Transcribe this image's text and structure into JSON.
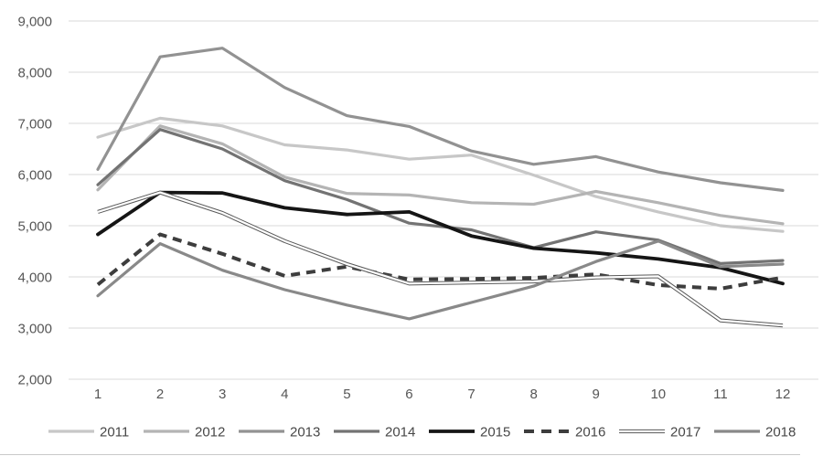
{
  "chart_data": {
    "type": "line",
    "title": "",
    "xlabel": "",
    "ylabel": "",
    "ylim": [
      2000,
      9000
    ],
    "ytick_step": 1000,
    "ytick_labels": [
      "2,000",
      "3,000",
      "4,000",
      "5,000",
      "6,000",
      "7,000",
      "8,000",
      "9,000"
    ],
    "xtick_labels": [
      "1",
      "2",
      "3",
      "4",
      "5",
      "6",
      "7",
      "8",
      "9",
      "10",
      "11",
      "12"
    ],
    "grid": "horizontal",
    "gridline_color": "#d9d9d9",
    "legend_position": "bottom",
    "series": [
      {
        "name": "2011",
        "color": "#c7c7c7",
        "style": "solid",
        "values": [
          6730,
          7100,
          6950,
          6580,
          6480,
          6300,
          6380,
          5990,
          5570,
          5270,
          5000,
          4890
        ]
      },
      {
        "name": "2012",
        "color": "#b4b4b4",
        "style": "solid",
        "values": [
          5700,
          6950,
          6600,
          5950,
          5630,
          5600,
          5450,
          5420,
          5670,
          5450,
          5200,
          5040
        ]
      },
      {
        "name": "2013",
        "color": "#929292",
        "style": "solid",
        "values": [
          6100,
          8300,
          8470,
          7700,
          7150,
          6940,
          6460,
          6200,
          6350,
          6050,
          5840,
          5690
        ]
      },
      {
        "name": "2014",
        "color": "#737373",
        "style": "solid",
        "values": [
          5800,
          6880,
          6500,
          5880,
          5510,
          5050,
          4920,
          4570,
          4880,
          4720,
          4260,
          4320
        ]
      },
      {
        "name": "2015",
        "color": "#151515",
        "style": "solid",
        "values": [
          4830,
          5650,
          5640,
          5350,
          5220,
          5270,
          4800,
          4560,
          4470,
          4350,
          4180,
          3870
        ]
      },
      {
        "name": "2016",
        "color": "#3d3d3d",
        "style": "dashed",
        "values": [
          3850,
          4830,
          4450,
          4020,
          4200,
          3950,
          3960,
          3980,
          4050,
          3840,
          3770,
          3990
        ]
      },
      {
        "name": "2017",
        "color": "#585858",
        "style": "double",
        "values": [
          5270,
          5650,
          5250,
          4700,
          4250,
          3870,
          3890,
          3910,
          3990,
          4010,
          3150,
          3050
        ]
      },
      {
        "name": "2018",
        "color": "#898989",
        "style": "solid",
        "values": [
          3630,
          4650,
          4130,
          3750,
          3450,
          3180,
          3500,
          3820,
          4300,
          4700,
          4200,
          4250
        ]
      }
    ]
  }
}
